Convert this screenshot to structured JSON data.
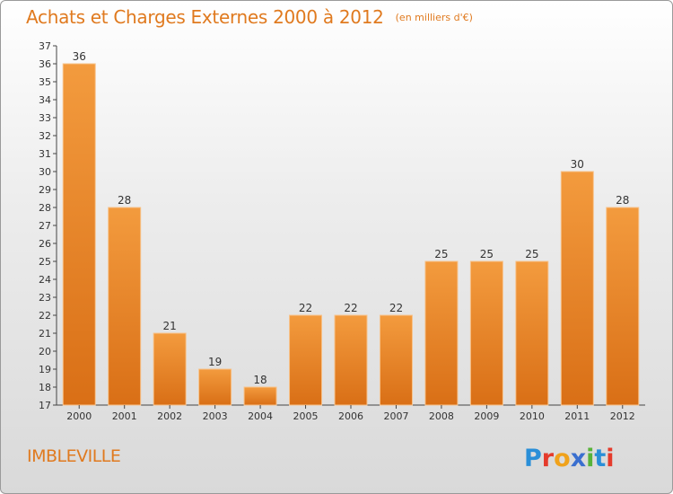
{
  "title": "Achats et Charges Externes 2000 à 2012",
  "unit": "(en milliers d'€)",
  "place": "IMBLEVILLE",
  "brand": "Proxiti",
  "colors": {
    "bar": "#f39b3e",
    "bar_dark": "#d96f16",
    "title": "#e07a1f"
  },
  "chart_data": {
    "type": "bar",
    "categories": [
      "2000",
      "2001",
      "2002",
      "2003",
      "2004",
      "2005",
      "2006",
      "2007",
      "2008",
      "2009",
      "2010",
      "2011",
      "2012"
    ],
    "values": [
      36,
      28,
      21,
      19,
      18,
      22,
      22,
      22,
      25,
      25,
      25,
      30,
      28
    ],
    "title": "Achats et Charges Externes 2000 à 2012",
    "xlabel": "",
    "ylabel": "",
    "ylim": [
      17,
      37
    ],
    "yticks": [
      17,
      18,
      19,
      20,
      21,
      22,
      23,
      24,
      25,
      26,
      27,
      28,
      29,
      30,
      31,
      32,
      33,
      34,
      35,
      36,
      37
    ],
    "grid": false,
    "legend": "none"
  }
}
